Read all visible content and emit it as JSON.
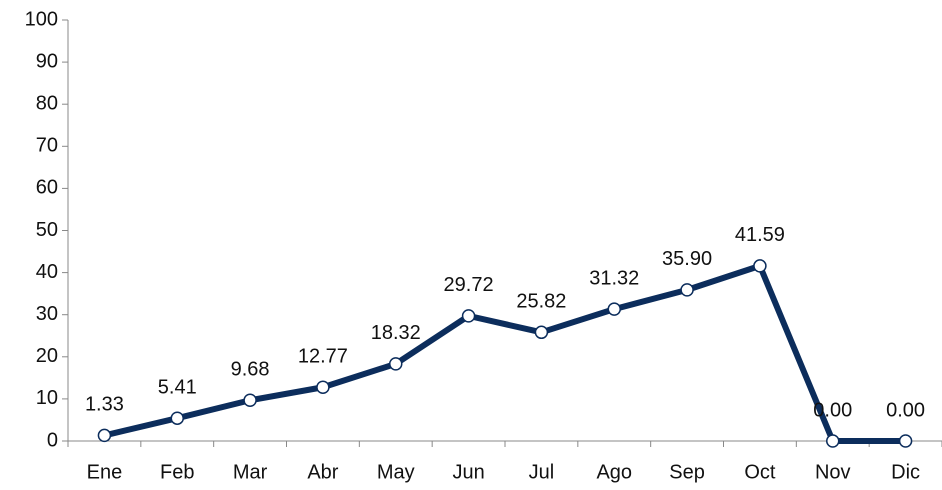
{
  "chart_data": {
    "type": "line",
    "categories": [
      "Ene",
      "Feb",
      "Mar",
      "Abr",
      "May",
      "Jun",
      "Jul",
      "Ago",
      "Sep",
      "Oct",
      "Nov",
      "Dic"
    ],
    "series": [
      {
        "name": null,
        "color": "#0c2d5c",
        "values": [
          1.33,
          5.41,
          9.68,
          12.77,
          18.32,
          29.72,
          25.82,
          31.32,
          35.9,
          41.59,
          0.0,
          0.0
        ],
        "value_labels": [
          "1.33",
          "5.41",
          "9.68",
          "12.77",
          "18.32",
          "29.72",
          "25.82",
          "31.32",
          "35.90",
          "41.59",
          "0.00",
          "0.00"
        ]
      }
    ],
    "ylim": [
      0,
      100
    ],
    "yticks": [
      0,
      10,
      20,
      30,
      40,
      50,
      60,
      70,
      80,
      90,
      100
    ],
    "grid": false
  }
}
